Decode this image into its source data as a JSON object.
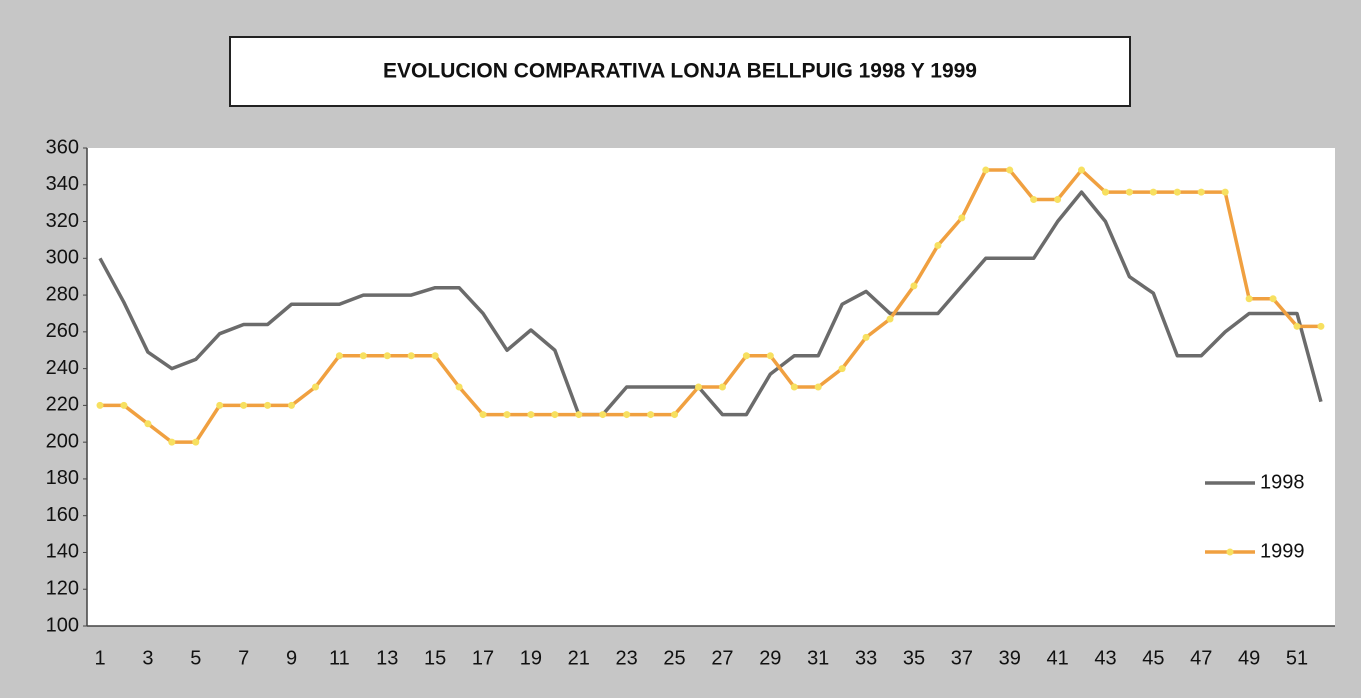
{
  "chart_data": {
    "type": "line",
    "title": "EVOLUCION COMPARATIVA LONJA BELLPUIG 1998 Y 1999",
    "categories": [
      1,
      null,
      3,
      null,
      5,
      null,
      7,
      null,
      9,
      null,
      11,
      null,
      13,
      null,
      15,
      null,
      17,
      null,
      19,
      null,
      21,
      null,
      23,
      null,
      25,
      null,
      27,
      null,
      29,
      null,
      31,
      null,
      33,
      null,
      35,
      null,
      37,
      null,
      39,
      null,
      41,
      null,
      43,
      null,
      45,
      null,
      47,
      null,
      49,
      null,
      51,
      null
    ],
    "series": [
      {
        "name": "1998",
        "color": "#6b6b6b",
        "marker": false,
        "values": [
          300,
          276,
          249,
          240,
          245,
          259,
          264,
          264,
          275,
          275,
          275,
          280,
          280,
          280,
          284,
          284,
          270,
          250,
          261,
          250,
          215,
          215,
          230,
          230,
          230,
          230,
          215,
          215,
          237,
          247,
          247,
          275,
          282,
          270,
          270,
          270,
          285,
          300,
          300,
          300,
          320,
          336,
          320,
          290,
          281,
          247,
          247,
          260,
          270,
          270,
          270,
          222
        ]
      },
      {
        "name": "1999",
        "color": "#f0a040",
        "marker": true,
        "marker_color": "#f7e060",
        "values": [
          220,
          220,
          210,
          200,
          200,
          220,
          220,
          220,
          220,
          230,
          247,
          247,
          247,
          247,
          247,
          230,
          215,
          215,
          215,
          215,
          215,
          215,
          215,
          215,
          215,
          230,
          230,
          247,
          247,
          230,
          230,
          240,
          257,
          267,
          285,
          307,
          322,
          348,
          348,
          332,
          332,
          348,
          336,
          336,
          336,
          336,
          336,
          336,
          278,
          278,
          263,
          263
        ]
      }
    ],
    "ylim": [
      100,
      360
    ],
    "yticks": [
      100,
      120,
      140,
      160,
      180,
      200,
      220,
      240,
      260,
      280,
      300,
      320,
      340,
      360
    ],
    "grid": false,
    "legend": "right"
  }
}
